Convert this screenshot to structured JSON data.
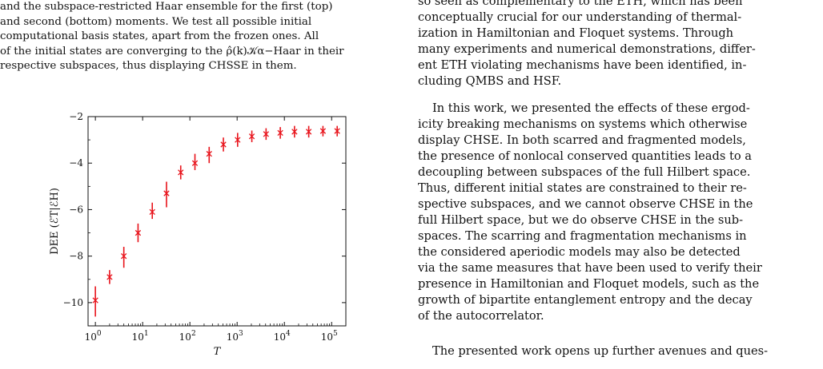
{
  "left_column": {
    "caption_lines": [
      "and the subspace-restricted Haar ensemble for the first (top)",
      "and second (bottom) moments. We test all possible initial",
      "computational basis states, apart from the frozen ones. All",
      "of the initial states are converging to the ρ̂(k)𝒦α−Haar in their",
      "respective subspaces, thus displaying CHSSE in them."
    ]
  },
  "right_column": {
    "paragraphs": [
      {
        "lines": [
          "so seen as complementary to the ETH, which has been",
          "conceptually crucial for our understanding of thermal-",
          "ization in Hamiltonian and Floquet systems. Through",
          "many experiments and numerical demonstrations, differ-",
          "ent ETH violating mechanisms have been identified, in-",
          "cluding QMBS and HSF."
        ]
      },
      {
        "lines": [
          "In this work, we presented the effects of these ergod-",
          "icity breaking mechanisms on systems which otherwise",
          "display CHSE. In both scarred and fragmented models,",
          "the presence of nonlocal conserved quantities leads to a",
          "decoupling between subspaces of the full Hilbert space.",
          "Thus, different initial states are constrained to their re-",
          "spective subspaces, and we cannot observe CHSE in the",
          "full Hilbert space, but we do observe CHSE in the sub-",
          "spaces. The scarring and fragmentation mechanisms in",
          "the considered aperiodic models may also be detected",
          "via the same measures that have been used to verify their",
          "presence in Hamiltonian and Floquet models, such as the",
          "growth of bipartite entanglement entropy and the decay",
          "of the autocorrelator."
        ]
      },
      {
        "lines": [
          "The presented work opens up further avenues and ques-"
        ]
      }
    ]
  },
  "chart_data": {
    "type": "scatter",
    "title": "",
    "xlabel": "T",
    "ylabel": "DEE (ℰT|ℰH)",
    "xscale": "log",
    "xlim": [
      0.7,
      200000
    ],
    "ylim": [
      -11,
      -2
    ],
    "grid": false,
    "marker": "x",
    "color": "#e8131b",
    "yticks": [
      -2,
      -4,
      -6,
      -8,
      -10
    ],
    "ytick_labels": [
      "−2",
      "−4",
      "−6",
      "−8",
      "−10"
    ],
    "xticks": [
      1,
      10,
      100,
      1000,
      10000,
      100000
    ],
    "xtick_labels": [
      {
        "base": "10",
        "exp": "0"
      },
      {
        "base": "10",
        "exp": "1"
      },
      {
        "base": "10",
        "exp": "2"
      },
      {
        "base": "10",
        "exp": "3"
      },
      {
        "base": "10",
        "exp": "4"
      },
      {
        "base": "10",
        "exp": "5"
      }
    ],
    "points": [
      {
        "x": 1,
        "y": -9.9,
        "err_low": -10.6,
        "err_high": -9.3
      },
      {
        "x": 2,
        "y": -8.9,
        "err_low": -9.2,
        "err_high": -8.6
      },
      {
        "x": 4,
        "y": -8.0,
        "err_low": -8.5,
        "err_high": -7.6
      },
      {
        "x": 8,
        "y": -7.0,
        "err_low": -7.4,
        "err_high": -6.6
      },
      {
        "x": 16,
        "y": -6.1,
        "err_low": -6.4,
        "err_high": -5.7
      },
      {
        "x": 32,
        "y": -5.3,
        "err_low": -5.9,
        "err_high": -4.8
      },
      {
        "x": 64,
        "y": -4.4,
        "err_low": -4.7,
        "err_high": -4.1
      },
      {
        "x": 128,
        "y": -4.0,
        "err_low": -4.3,
        "err_high": -3.6
      },
      {
        "x": 256,
        "y": -3.6,
        "err_low": -4.0,
        "err_high": -3.3
      },
      {
        "x": 512,
        "y": -3.2,
        "err_low": -3.5,
        "err_high": -2.9
      },
      {
        "x": 1024,
        "y": -3.0,
        "err_low": -3.3,
        "err_high": -2.7
      },
      {
        "x": 2048,
        "y": -2.85,
        "err_low": -3.1,
        "err_high": -2.6
      },
      {
        "x": 4096,
        "y": -2.75,
        "err_low": -3.0,
        "err_high": -2.5
      },
      {
        "x": 8192,
        "y": -2.7,
        "err_low": -2.95,
        "err_high": -2.45
      },
      {
        "x": 16384,
        "y": -2.65,
        "err_low": -2.9,
        "err_high": -2.4
      },
      {
        "x": 32768,
        "y": -2.65,
        "err_low": -2.9,
        "err_high": -2.4
      },
      {
        "x": 65536,
        "y": -2.62,
        "err_low": -2.85,
        "err_high": -2.4
      },
      {
        "x": 131072,
        "y": -2.62,
        "err_low": -2.85,
        "err_high": -2.4
      }
    ]
  }
}
